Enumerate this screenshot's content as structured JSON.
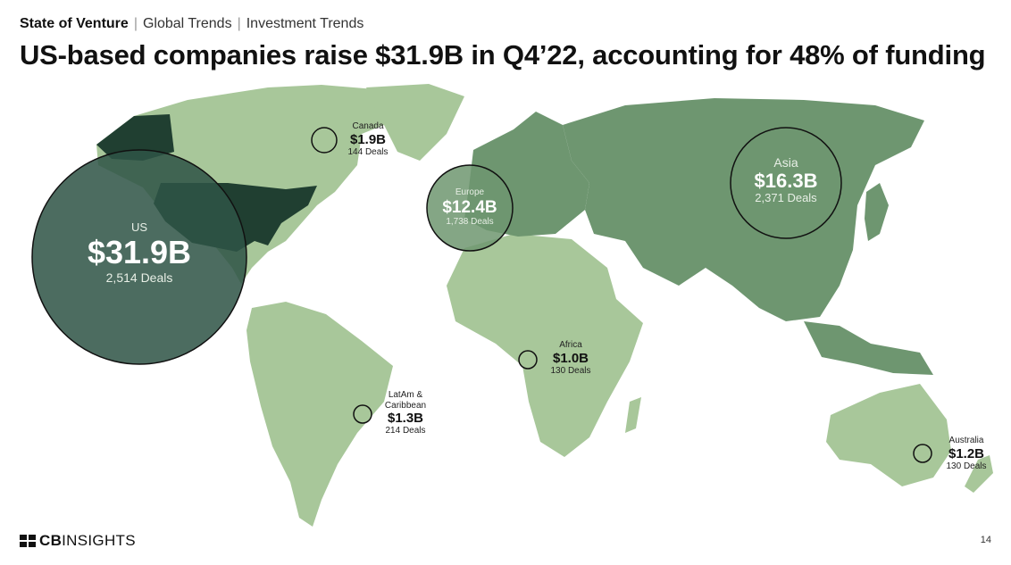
{
  "breadcrumb": {
    "section": "State of Venture",
    "item1": "Global Trends",
    "item2": "Investment Trends"
  },
  "title": "US-based companies raise $31.9B in Q4’22, accounting for 48% of funding",
  "regions": {
    "us": {
      "name": "US",
      "amount": "$31.9B",
      "deals": "2,514 Deals",
      "amount_b": 31.9
    },
    "canada": {
      "name": "Canada",
      "amount": "$1.9B",
      "deals": "144 Deals",
      "amount_b": 1.9
    },
    "europe": {
      "name": "Europe",
      "amount": "$12.4B",
      "deals": "1,738 Deals",
      "amount_b": 12.4
    },
    "asia": {
      "name": "Asia",
      "amount": "$16.3B",
      "deals": "2,371 Deals",
      "amount_b": 16.3
    },
    "africa": {
      "name": "Africa",
      "amount": "$1.0B",
      "deals": "130 Deals",
      "amount_b": 1.0
    },
    "latam": {
      "name_line1": "LatAm &",
      "name_line2": "Caribbean",
      "amount": "$1.3B",
      "deals": "214 Deals",
      "amount_b": 1.3
    },
    "australia": {
      "name": "Australia",
      "amount": "$1.2B",
      "deals": "130 Deals",
      "amount_b": 1.2
    }
  },
  "colors": {
    "light": "#a8c79a",
    "medium": "#6e9670",
    "dark": "#203f31",
    "bubble": "#2f5446"
  },
  "footer": {
    "logo_bold": "CB",
    "logo_thin": "INSIGHTS",
    "page": "14"
  }
}
